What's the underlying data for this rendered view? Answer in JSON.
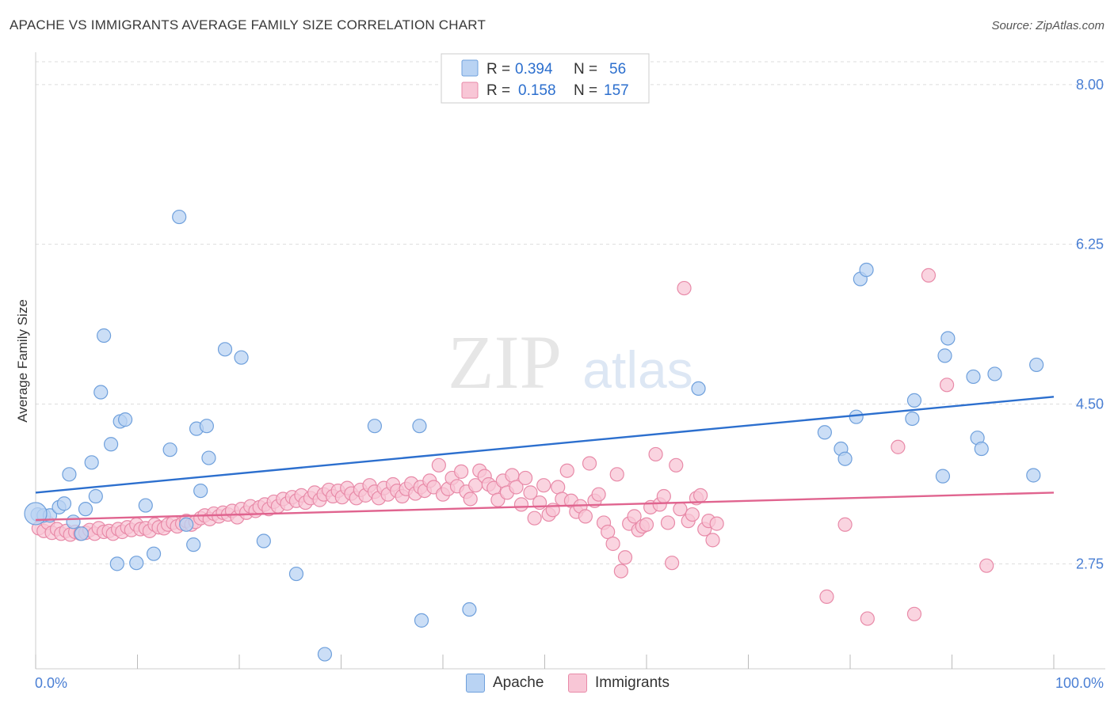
{
  "title": "APACHE VS IMMIGRANTS AVERAGE FAMILY SIZE CORRELATION CHART",
  "source": "Source: ZipAtlas.com",
  "colors": {
    "apache_fill": "#b9d3f3",
    "apache_stroke": "#6fa0dc",
    "apache_line": "#2c6fce",
    "immigrants_fill": "#f8c6d6",
    "immigrants_stroke": "#e88aa8",
    "immigrants_line": "#e0648f",
    "axis_value": "#4a7fd4",
    "grid": "#dddddd"
  },
  "legend": {
    "rows": [
      {
        "r_label": "R =",
        "r_value": "0.394",
        "n_label": "N =",
        "n_value": "56"
      },
      {
        "r_label": "R =",
        "r_value": "0.158",
        "n_label": "N =",
        "n_value": "157"
      }
    ]
  },
  "bottom_legend": [
    "Apache",
    "Immigrants"
  ],
  "chart_data": {
    "type": "scatter",
    "title": "APACHE VS IMMIGRANTS AVERAGE FAMILY SIZE CORRELATION CHART",
    "xlabel": "",
    "ylabel": "Average Family Size",
    "xlim": [
      0,
      100
    ],
    "ylim": [
      1.6,
      8.25
    ],
    "x_tick_labels": [
      "0.0%",
      "100.0%"
    ],
    "y_ticks": [
      2.75,
      4.5,
      6.25,
      8.0
    ],
    "y_tick_labels": [
      "2.75",
      "4.50",
      "6.25",
      "8.00"
    ],
    "grid": true,
    "legend_position": "top-center",
    "series": [
      {
        "name": "Apache",
        "r": 0.394,
        "n": 56,
        "trend": {
          "x": [
            0,
            100
          ],
          "y": [
            3.53,
            4.58
          ]
        },
        "points": [
          [
            0.2,
            3.29
          ],
          [
            0.8,
            3.28
          ],
          [
            1.4,
            3.28
          ],
          [
            2.3,
            3.37
          ],
          [
            2.8,
            3.41
          ],
          [
            3.3,
            3.73
          ],
          [
            3.7,
            3.21
          ],
          [
            4.5,
            3.08
          ],
          [
            4.9,
            3.35
          ],
          [
            5.5,
            3.86
          ],
          [
            5.9,
            3.49
          ],
          [
            6.4,
            4.63
          ],
          [
            6.7,
            5.25
          ],
          [
            7.4,
            4.06
          ],
          [
            8.0,
            2.75
          ],
          [
            8.3,
            4.31
          ],
          [
            8.8,
            4.33
          ],
          [
            9.9,
            2.76
          ],
          [
            10.8,
            3.39
          ],
          [
            11.6,
            2.86
          ],
          [
            13.2,
            4.0
          ],
          [
            14.1,
            6.55
          ],
          [
            14.8,
            3.18
          ],
          [
            15.5,
            2.96
          ],
          [
            15.8,
            4.23
          ],
          [
            16.2,
            3.55
          ],
          [
            16.8,
            4.26
          ],
          [
            17.0,
            3.91
          ],
          [
            18.6,
            5.1
          ],
          [
            20.2,
            5.01
          ],
          [
            22.4,
            3.0
          ],
          [
            25.6,
            2.64
          ],
          [
            28.4,
            1.76
          ],
          [
            33.3,
            4.26
          ],
          [
            37.7,
            4.26
          ],
          [
            37.9,
            2.13
          ],
          [
            42.6,
            2.25
          ],
          [
            65.1,
            4.67
          ],
          [
            77.5,
            4.19
          ],
          [
            79.1,
            4.01
          ],
          [
            79.5,
            3.9
          ],
          [
            80.6,
            4.36
          ],
          [
            81.0,
            5.87
          ],
          [
            81.6,
            5.97
          ],
          [
            86.1,
            4.34
          ],
          [
            86.3,
            4.54
          ],
          [
            89.1,
            3.71
          ],
          [
            89.3,
            5.03
          ],
          [
            89.6,
            5.22
          ],
          [
            92.1,
            4.8
          ],
          [
            92.5,
            4.13
          ],
          [
            92.9,
            4.01
          ],
          [
            94.2,
            4.83
          ],
          [
            98.0,
            3.72
          ],
          [
            98.3,
            4.93
          ],
          [
            0.0,
            3.3
          ]
        ]
      },
      {
        "name": "Immigrants",
        "r": 0.158,
        "n": 157,
        "trend": {
          "x": [
            0,
            100
          ],
          "y": [
            3.23,
            3.53
          ]
        },
        "points": [
          [
            0.3,
            3.14
          ],
          [
            0.8,
            3.11
          ],
          [
            1.2,
            3.2
          ],
          [
            1.6,
            3.09
          ],
          [
            2.1,
            3.13
          ],
          [
            2.5,
            3.08
          ],
          [
            3.0,
            3.11
          ],
          [
            3.4,
            3.07
          ],
          [
            3.9,
            3.1
          ],
          [
            4.4,
            3.08
          ],
          [
            4.9,
            3.09
          ],
          [
            5.3,
            3.12
          ],
          [
            5.8,
            3.08
          ],
          [
            6.2,
            3.14
          ],
          [
            6.7,
            3.1
          ],
          [
            7.2,
            3.11
          ],
          [
            7.6,
            3.08
          ],
          [
            8.1,
            3.13
          ],
          [
            8.5,
            3.1
          ],
          [
            9.0,
            3.15
          ],
          [
            9.4,
            3.12
          ],
          [
            9.9,
            3.18
          ],
          [
            10.3,
            3.13
          ],
          [
            10.8,
            3.14
          ],
          [
            11.2,
            3.11
          ],
          [
            11.7,
            3.18
          ],
          [
            12.1,
            3.15
          ],
          [
            12.6,
            3.14
          ],
          [
            13.0,
            3.18
          ],
          [
            13.5,
            3.2
          ],
          [
            13.9,
            3.16
          ],
          [
            14.4,
            3.19
          ],
          [
            14.8,
            3.22
          ],
          [
            15.3,
            3.18
          ],
          [
            15.7,
            3.21
          ],
          [
            16.2,
            3.25
          ],
          [
            16.6,
            3.28
          ],
          [
            17.1,
            3.24
          ],
          [
            17.5,
            3.3
          ],
          [
            18.0,
            3.27
          ],
          [
            18.4,
            3.31
          ],
          [
            18.9,
            3.29
          ],
          [
            19.3,
            3.33
          ],
          [
            19.8,
            3.26
          ],
          [
            20.2,
            3.35
          ],
          [
            20.7,
            3.31
          ],
          [
            21.1,
            3.38
          ],
          [
            21.6,
            3.33
          ],
          [
            22.0,
            3.37
          ],
          [
            22.5,
            3.4
          ],
          [
            22.9,
            3.35
          ],
          [
            23.4,
            3.43
          ],
          [
            23.8,
            3.38
          ],
          [
            24.3,
            3.46
          ],
          [
            24.7,
            3.41
          ],
          [
            25.2,
            3.48
          ],
          [
            25.6,
            3.44
          ],
          [
            26.1,
            3.5
          ],
          [
            26.5,
            3.42
          ],
          [
            27.0,
            3.47
          ],
          [
            27.4,
            3.53
          ],
          [
            27.9,
            3.45
          ],
          [
            28.3,
            3.51
          ],
          [
            28.8,
            3.56
          ],
          [
            29.2,
            3.49
          ],
          [
            29.7,
            3.55
          ],
          [
            30.1,
            3.48
          ],
          [
            30.6,
            3.58
          ],
          [
            31.0,
            3.52
          ],
          [
            31.5,
            3.47
          ],
          [
            31.9,
            3.56
          ],
          [
            32.4,
            3.5
          ],
          [
            32.8,
            3.61
          ],
          [
            33.3,
            3.54
          ],
          [
            33.7,
            3.47
          ],
          [
            34.2,
            3.58
          ],
          [
            34.6,
            3.51
          ],
          [
            35.1,
            3.62
          ],
          [
            35.5,
            3.55
          ],
          [
            36.0,
            3.49
          ],
          [
            36.4,
            3.57
          ],
          [
            36.9,
            3.63
          ],
          [
            37.3,
            3.52
          ],
          [
            37.8,
            3.59
          ],
          [
            38.2,
            3.55
          ],
          [
            38.7,
            3.66
          ],
          [
            39.1,
            3.59
          ],
          [
            39.6,
            3.83
          ],
          [
            40.0,
            3.51
          ],
          [
            40.5,
            3.57
          ],
          [
            40.9,
            3.69
          ],
          [
            41.4,
            3.6
          ],
          [
            41.8,
            3.76
          ],
          [
            42.3,
            3.54
          ],
          [
            42.7,
            3.46
          ],
          [
            43.2,
            3.61
          ],
          [
            43.6,
            3.77
          ],
          [
            44.1,
            3.71
          ],
          [
            44.5,
            3.62
          ],
          [
            45.0,
            3.58
          ],
          [
            45.4,
            3.45
          ],
          [
            45.9,
            3.66
          ],
          [
            46.3,
            3.53
          ],
          [
            46.8,
            3.72
          ],
          [
            47.2,
            3.59
          ],
          [
            47.7,
            3.4
          ],
          [
            48.1,
            3.69
          ],
          [
            48.6,
            3.53
          ],
          [
            49.0,
            3.25
          ],
          [
            49.5,
            3.42
          ],
          [
            49.9,
            3.61
          ],
          [
            50.4,
            3.29
          ],
          [
            50.8,
            3.34
          ],
          [
            51.3,
            3.59
          ],
          [
            51.7,
            3.46
          ],
          [
            52.2,
            3.77
          ],
          [
            52.6,
            3.44
          ],
          [
            53.1,
            3.32
          ],
          [
            53.5,
            3.38
          ],
          [
            54.0,
            3.27
          ],
          [
            54.4,
            3.85
          ],
          [
            54.9,
            3.44
          ],
          [
            55.3,
            3.51
          ],
          [
            55.8,
            3.2
          ],
          [
            56.2,
            3.1
          ],
          [
            56.7,
            2.97
          ],
          [
            57.1,
            3.73
          ],
          [
            57.5,
            2.67
          ],
          [
            57.9,
            2.82
          ],
          [
            58.3,
            3.19
          ],
          [
            58.8,
            3.27
          ],
          [
            59.2,
            3.12
          ],
          [
            59.6,
            3.16
          ],
          [
            60.0,
            3.18
          ],
          [
            60.4,
            3.37
          ],
          [
            60.9,
            3.95
          ],
          [
            61.3,
            3.4
          ],
          [
            61.7,
            3.49
          ],
          [
            62.1,
            3.2
          ],
          [
            62.5,
            2.76
          ],
          [
            62.9,
            3.83
          ],
          [
            63.3,
            3.35
          ],
          [
            63.7,
            5.77
          ],
          [
            64.1,
            3.22
          ],
          [
            64.5,
            3.29
          ],
          [
            64.9,
            3.47
          ],
          [
            65.3,
            3.5
          ],
          [
            65.7,
            3.13
          ],
          [
            66.1,
            3.22
          ],
          [
            66.5,
            3.01
          ],
          [
            66.9,
            3.19
          ],
          [
            77.7,
            2.39
          ],
          [
            79.5,
            3.18
          ],
          [
            81.7,
            2.15
          ],
          [
            84.7,
            4.03
          ],
          [
            86.3,
            2.2
          ],
          [
            87.7,
            5.91
          ],
          [
            89.5,
            4.71
          ],
          [
            93.4,
            2.73
          ]
        ]
      }
    ]
  }
}
